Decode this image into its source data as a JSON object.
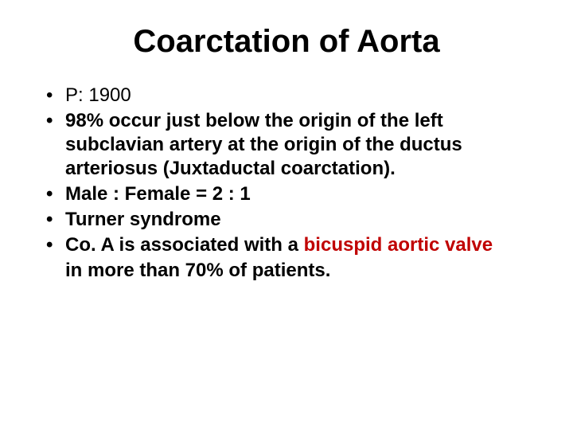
{
  "slide": {
    "title": "Coarctation of Aorta",
    "title_fontsize": 40,
    "title_color": "#000000",
    "body_fontsize": 24,
    "body_color": "#000000",
    "accent_color": "#c00000",
    "background_color": "#ffffff",
    "bullets": [
      {
        "text": "P: 1900",
        "bold": false
      },
      {
        "text": "98% occur just below the origin of the left subclavian artery at the origin of the ductus arteriosus (Juxtaductal coarctation).",
        "bold": true
      },
      {
        "text": "Male : Female = 2 : 1",
        "bold": true
      },
      {
        "text": "Turner syndrome",
        "bold": true
      },
      {
        "text_pre": " Co. A is associated with a ",
        "accent_text": "bicuspid aortic valve",
        "bold": true
      }
    ],
    "continuation_text": "in more than 70% of patients."
  }
}
